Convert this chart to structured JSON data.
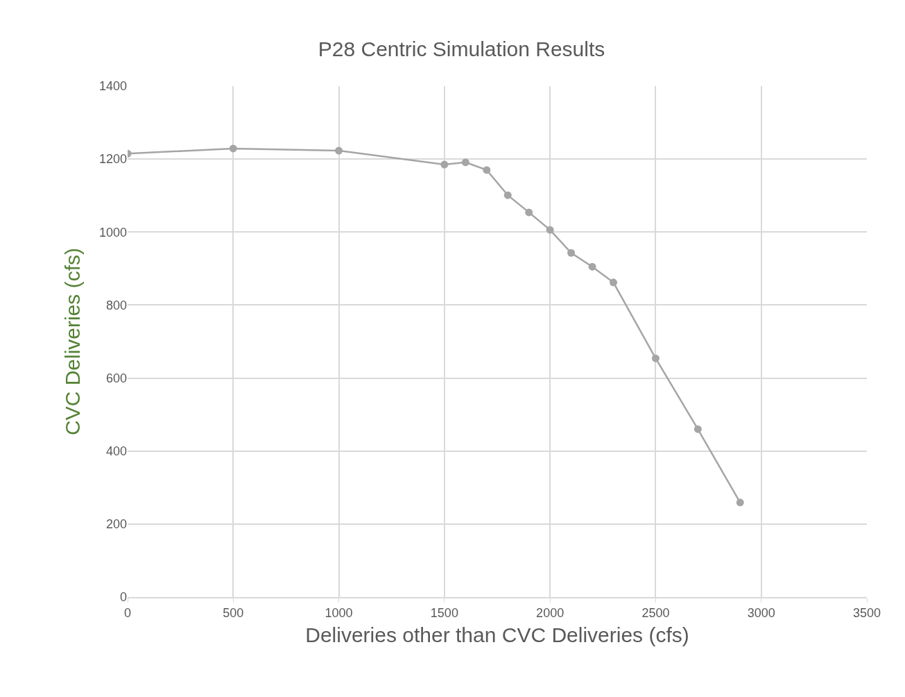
{
  "chart_data": {
    "type": "line",
    "title": "P28 Centric Simulation Results",
    "xlabel": "Deliveries other than CVC Deliveries (cfs)",
    "ylabel": "CVC Deliveries (cfs)",
    "x": [
      0,
      500,
      1000,
      1500,
      1600,
      1700,
      1800,
      1900,
      2000,
      2100,
      2200,
      2300,
      2500,
      2700,
      2900
    ],
    "series": [
      {
        "color": "#a5a5a5",
        "values": [
          1215,
          1229,
          1223,
          1185,
          1191,
          1170,
          1101,
          1054,
          1006,
          943,
          905,
          862,
          654,
          460,
          259
        ]
      }
    ],
    "xlim": [
      0,
      3500
    ],
    "xticks": [
      0,
      500,
      1000,
      1500,
      2000,
      2500,
      3000,
      3500
    ],
    "ylim": [
      0,
      1400
    ],
    "yticks": [
      0,
      200,
      400,
      600,
      800,
      1000,
      1200,
      1400
    ],
    "grid": true,
    "marker": "circle",
    "line_style": "solid"
  }
}
